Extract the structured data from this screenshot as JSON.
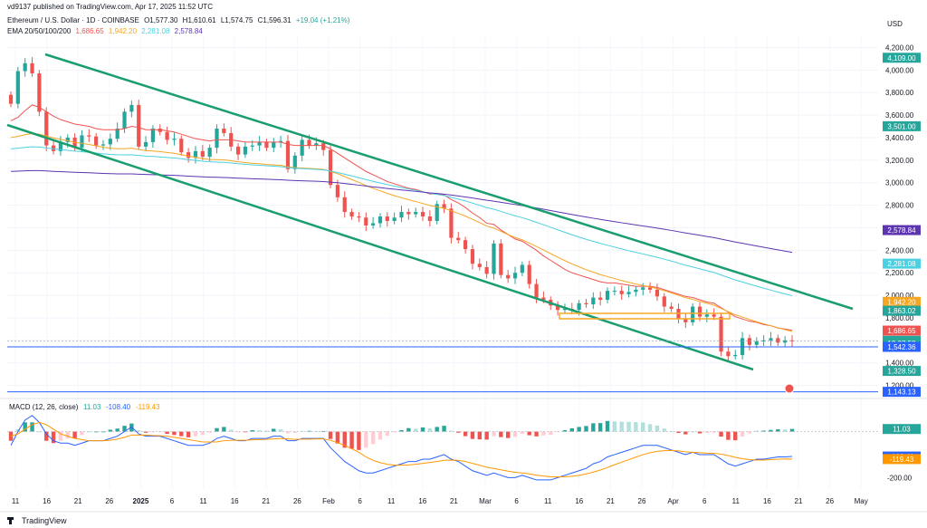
{
  "header": {
    "published": "vd9137 published on TradingView.com, Apr 17, 2025 11:52 UTC",
    "symbol": "Ethereum / U.S. Dollar · 1D · COINBASE",
    "ohlc": {
      "o": "O1,577.30",
      "h": "H1,610.61",
      "l": "L1,574.75",
      "c": "C1,596.31",
      "chg": "+19.04 (+1.21%)"
    },
    "ema_label": "EMA 20/50/100/200",
    "ema_values": [
      "1,686.65",
      "1,942.20",
      "2,281.08",
      "2,578.84"
    ],
    "currency": "USD"
  },
  "colors": {
    "up": "#26a69a",
    "down": "#ef5350",
    "ema20": "#ef5350",
    "ema50": "#f5a623",
    "ema100": "#4dd0e1",
    "ema200": "#5e35b1",
    "channel": "#1a9e6e",
    "hline": "#2962ff",
    "macd": "#2962ff",
    "signal": "#ff9800",
    "zone": "#f9a825"
  },
  "footer": {
    "brand": "TradingView"
  },
  "chart_data": {
    "type": "candlestick",
    "ylim": [
      1100,
      4300
    ],
    "y_ticks": [
      "4,200.00",
      "4,000.00",
      "3,800.00",
      "3,600.00",
      "3,400.00",
      "3,200.00",
      "3,000.00",
      "2,800.00",
      "2,600.00",
      "2,400.00",
      "2,200.00",
      "2,000.00",
      "1,800.00",
      "1,600.00",
      "1,400.00",
      "1,200.00"
    ],
    "x_ticks": [
      "11",
      "16",
      "21",
      "26",
      "2025",
      "6",
      "11",
      "16",
      "21",
      "26",
      "Feb",
      "6",
      "11",
      "16",
      "21",
      "Mar",
      "6",
      "11",
      "16",
      "21",
      "26",
      "Apr",
      "6",
      "11",
      "16",
      "21",
      "26",
      "May"
    ],
    "price_labels": [
      {
        "text": "4,109.00",
        "value": 4109,
        "color": "#26a69a"
      },
      {
        "text": "3,501.00",
        "value": 3501,
        "color": "#26a69a"
      },
      {
        "text": "2,578.84",
        "value": 2578.84,
        "color": "#5e35b1"
      },
      {
        "text": "2,281.08",
        "value": 2281.08,
        "color": "#4dd0e1"
      },
      {
        "text": "1,942.20",
        "value": 1942.2,
        "color": "#f5a623"
      },
      {
        "text": "1,863.02",
        "value": 1863.02,
        "color": "#26a69a"
      },
      {
        "text": "1,686.65",
        "value": 1686.65,
        "color": "#ef5350"
      },
      {
        "text": "1,596.31",
        "value": 1596.31,
        "color": "#26a69a"
      },
      {
        "text": "12:07:58",
        "value": 1575,
        "color": "#26a69a"
      },
      {
        "text": "1,542.36",
        "value": 1542.36,
        "color": "#2962ff"
      },
      {
        "text": "1,328.50",
        "value": 1328.5,
        "color": "#26a69a"
      },
      {
        "text": "1,143.13",
        "value": 1143.13,
        "color": "#2962ff"
      }
    ],
    "close": [
      3700,
      3990,
      4060,
      3970,
      3630,
      3330,
      3280,
      3360,
      3400,
      3310,
      3420,
      3410,
      3330,
      3340,
      3390,
      3480,
      3630,
      3690,
      3320,
      3360,
      3480,
      3450,
      3380,
      3390,
      3270,
      3220,
      3280,
      3230,
      3310,
      3480,
      3440,
      3320,
      3250,
      3320,
      3330,
      3360,
      3310,
      3360,
      3370,
      3120,
      3240,
      3380,
      3330,
      3350,
      3290,
      2980,
      2870,
      2740,
      2700,
      2690,
      2620,
      2640,
      2700,
      2660,
      2690,
      2740,
      2720,
      2740,
      2700,
      2660,
      2810,
      2770,
      2510,
      2490,
      2410,
      2280,
      2250,
      2190,
      2460,
      2180,
      2150,
      2200,
      2270,
      2100,
      1980,
      1960,
      1910,
      1870,
      1880,
      1870,
      1930,
      1920,
      1980,
      1960,
      2040,
      2040,
      2010,
      2030,
      2050,
      2070,
      2050,
      1990,
      1900,
      1880,
      1790,
      1760,
      1900,
      1810,
      1830,
      1810,
      1500,
      1460,
      1470,
      1620,
      1560,
      1590,
      1600,
      1620,
      1580,
      1600,
      1596
    ],
    "ema20": [
      3550,
      3580,
      3640,
      3690,
      3670,
      3630,
      3590,
      3560,
      3540,
      3520,
      3510,
      3500,
      3480,
      3470,
      3470,
      3470,
      3480,
      3500,
      3490,
      3470,
      3470,
      3470,
      3460,
      3450,
      3430,
      3410,
      3390,
      3380,
      3370,
      3380,
      3380,
      3380,
      3370,
      3360,
      3360,
      3360,
      3360,
      3360,
      3360,
      3340,
      3330,
      3330,
      3330,
      3330,
      3330,
      3300,
      3260,
      3220,
      3180,
      3140,
      3100,
      3070,
      3040,
      3010,
      2990,
      2970,
      2950,
      2940,
      2920,
      2900,
      2900,
      2890,
      2850,
      2820,
      2780,
      2730,
      2690,
      2640,
      2630,
      2580,
      2540,
      2500,
      2480,
      2440,
      2400,
      2350,
      2310,
      2270,
      2230,
      2200,
      2180,
      2160,
      2140,
      2120,
      2110,
      2110,
      2100,
      2090,
      2080,
      2080,
      2080,
      2070,
      2050,
      2030,
      2010,
      1990,
      1980,
      1960,
      1940,
      1930,
      1890,
      1850,
      1810,
      1790,
      1770,
      1760,
      1740,
      1730,
      1710,
      1700,
      1690
    ],
    "macd": [
      -60,
      0,
      50,
      70,
      40,
      -10,
      -40,
      -50,
      -50,
      -60,
      -50,
      -40,
      -40,
      -40,
      -30,
      -20,
      0,
      20,
      -10,
      -20,
      -20,
      -20,
      -30,
      -40,
      -50,
      -60,
      -60,
      -60,
      -50,
      -30,
      -20,
      -30,
      -40,
      -40,
      -30,
      -30,
      -30,
      -20,
      -20,
      -40,
      -40,
      -30,
      -30,
      -30,
      -30,
      -70,
      -100,
      -130,
      -150,
      -170,
      -180,
      -180,
      -170,
      -160,
      -150,
      -140,
      -130,
      -130,
      -120,
      -120,
      -110,
      -100,
      -120,
      -130,
      -150,
      -170,
      -180,
      -190,
      -180,
      -190,
      -200,
      -200,
      -190,
      -200,
      -210,
      -210,
      -210,
      -200,
      -190,
      -180,
      -170,
      -160,
      -140,
      -130,
      -110,
      -100,
      -90,
      -80,
      -70,
      -60,
      -60,
      -60,
      -70,
      -80,
      -90,
      -100,
      -90,
      -100,
      -100,
      -100,
      -120,
      -140,
      -150,
      -140,
      -130,
      -120,
      -120,
      -115,
      -110,
      -110,
      -108
    ],
    "signal": [
      -20,
      -10,
      10,
      30,
      40,
      30,
      10,
      -10,
      -20,
      -30,
      -35,
      -40,
      -40,
      -40,
      -38,
      -33,
      -25,
      -15,
      -15,
      -15,
      -17,
      -18,
      -20,
      -25,
      -30,
      -35,
      -40,
      -45,
      -45,
      -45,
      -40,
      -38,
      -38,
      -38,
      -36,
      -35,
      -34,
      -32,
      -30,
      -32,
      -34,
      -33,
      -33,
      -32,
      -32,
      -38,
      -48,
      -60,
      -75,
      -90,
      -110,
      -125,
      -135,
      -142,
      -146,
      -146,
      -145,
      -142,
      -138,
      -134,
      -130,
      -125,
      -124,
      -125,
      -130,
      -138,
      -146,
      -155,
      -160,
      -166,
      -172,
      -177,
      -180,
      -184,
      -189,
      -193,
      -196,
      -197,
      -196,
      -194,
      -190,
      -184,
      -176,
      -167,
      -156,
      -144,
      -133,
      -122,
      -111,
      -100,
      -92,
      -86,
      -83,
      -82,
      -84,
      -88,
      -90,
      -92,
      -94,
      -95,
      -98,
      -104,
      -112,
      -118,
      -122,
      -124,
      -124,
      -122,
      -120,
      -119,
      -119.43
    ],
    "macd_labels": {
      "title": "MACD (12, 26, close)",
      "hist": "11.03",
      "macd": "-108.40",
      "signal": "-119.43"
    },
    "macd_ticks": [
      "-200.00"
    ],
    "macd_axis_labels": [
      {
        "text": "11.03",
        "value": 11.03,
        "color": "#26a69a"
      },
      {
        "text": "-108.40",
        "value": -108.4,
        "color": "#2962ff"
      },
      {
        "text": "-119.43",
        "value": -119.43,
        "color": "#ff9800"
      }
    ]
  }
}
